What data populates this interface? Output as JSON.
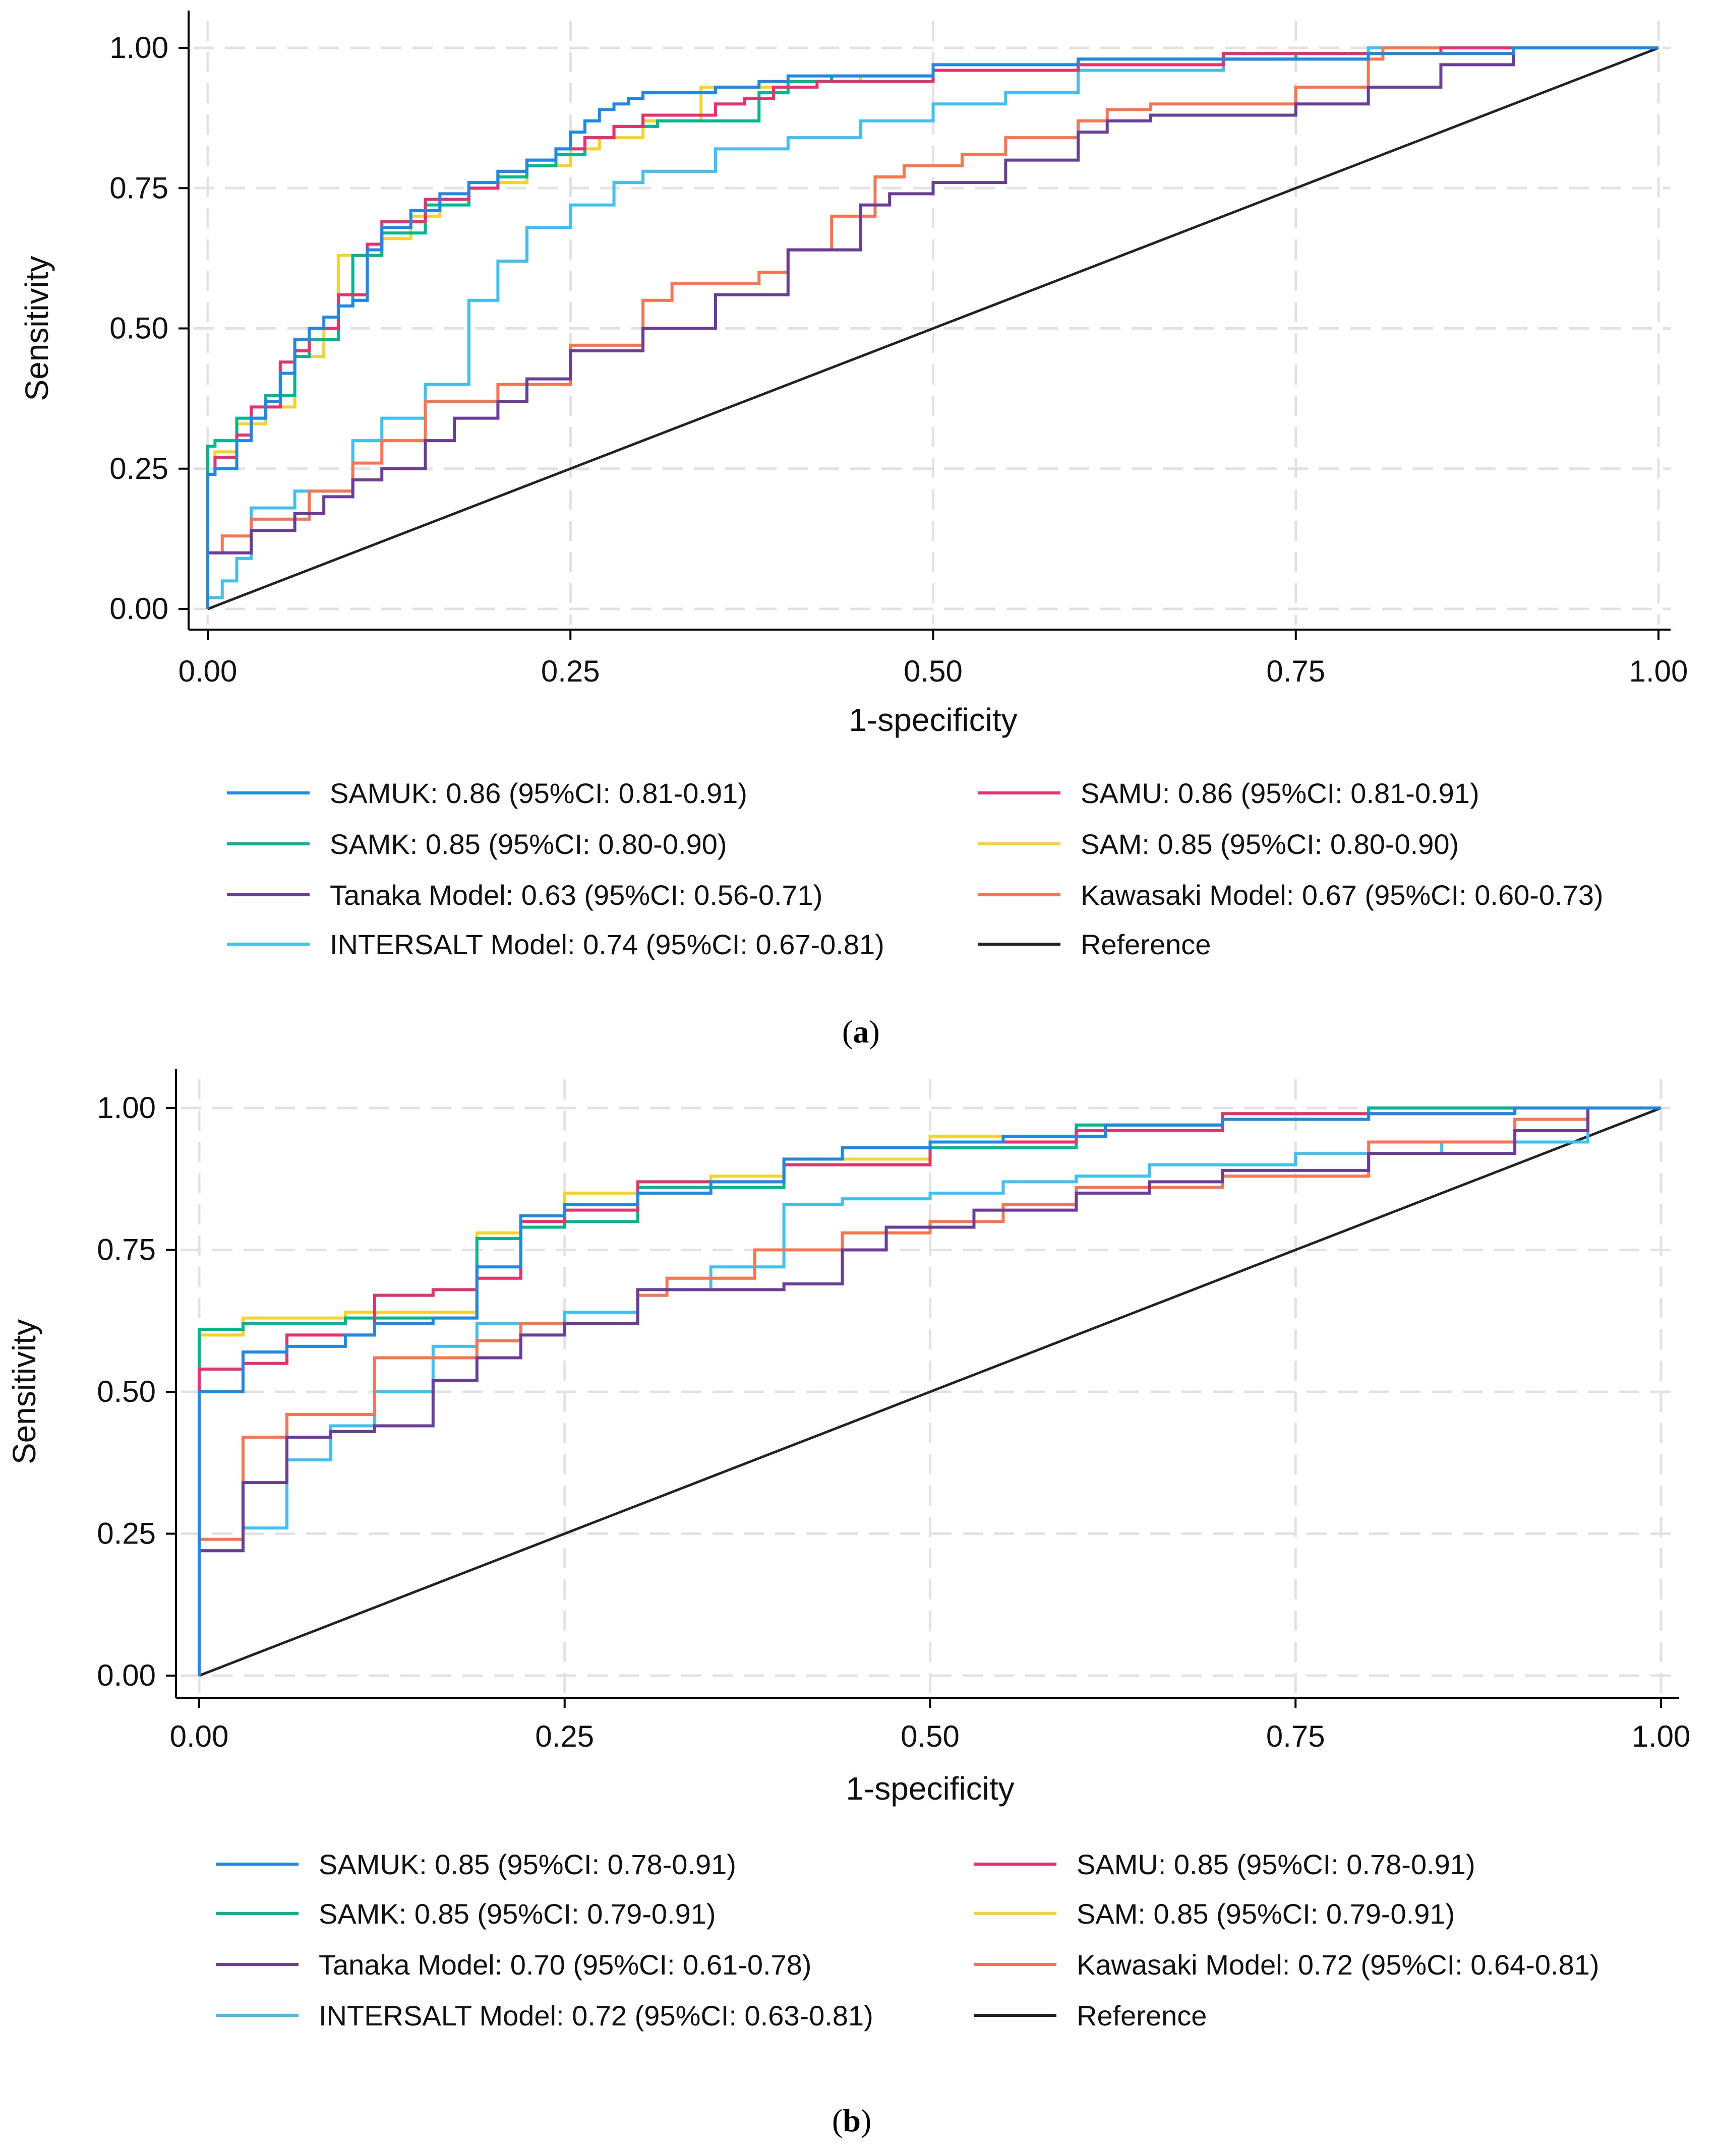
{
  "chart_data": [
    {
      "type": "line",
      "panel_label": "a",
      "xlabel": "1-specificity",
      "ylabel": "Sensitivity",
      "xlim": [
        0,
        1
      ],
      "ylim": [
        0,
        1
      ],
      "xticks": [
        "0.00",
        "0.25",
        "0.50",
        "0.75",
        "1.00"
      ],
      "yticks": [
        "0.00",
        "0.25",
        "0.50",
        "0.75",
        "1.00"
      ],
      "grid": true,
      "legend_position": "bottom",
      "series": [
        {
          "name": "SAMUK: 0.86 (95%CI: 0.81-0.91)",
          "color": "#1f88e5",
          "x": [
            0,
            0.005,
            0.02,
            0.03,
            0.04,
            0.05,
            0.06,
            0.07,
            0.08,
            0.09,
            0.1,
            0.11,
            0.12,
            0.14,
            0.16,
            0.18,
            0.2,
            0.22,
            0.24,
            0.25,
            0.26,
            0.27,
            0.28,
            0.29,
            0.3,
            0.35,
            0.38,
            0.4,
            0.5,
            0.6,
            0.65,
            0.8,
            0.9,
            1
          ],
          "y": [
            0,
            0.24,
            0.25,
            0.3,
            0.34,
            0.37,
            0.42,
            0.48,
            0.5,
            0.52,
            0.54,
            0.55,
            0.64,
            0.68,
            0.71,
            0.74,
            0.76,
            0.78,
            0.8,
            0.82,
            0.85,
            0.87,
            0.89,
            0.9,
            0.91,
            0.92,
            0.93,
            0.94,
            0.95,
            0.97,
            0.98,
            0.98,
            0.99,
            1
          ]
        },
        {
          "name": "SAMU: 0.86 (95%CI: 0.81-0.91)",
          "color": "#e6316e",
          "x": [
            0,
            0.005,
            0.02,
            0.03,
            0.05,
            0.06,
            0.07,
            0.09,
            0.11,
            0.12,
            0.15,
            0.18,
            0.2,
            0.22,
            0.24,
            0.26,
            0.28,
            0.3,
            0.35,
            0.37,
            0.39,
            0.42,
            0.5,
            0.6,
            0.7,
            0.85,
            1
          ],
          "y": [
            0,
            0.24,
            0.27,
            0.31,
            0.36,
            0.44,
            0.46,
            0.5,
            0.56,
            0.65,
            0.69,
            0.73,
            0.75,
            0.78,
            0.8,
            0.82,
            0.84,
            0.86,
            0.88,
            0.9,
            0.91,
            0.93,
            0.94,
            0.96,
            0.97,
            0.99,
            1
          ]
        },
        {
          "name": "SAMK: 0.85 (95%CI: 0.80-0.90)",
          "color": "#00b890",
          "x": [
            0,
            0.005,
            0.02,
            0.04,
            0.06,
            0.07,
            0.09,
            0.1,
            0.12,
            0.15,
            0.18,
            0.2,
            0.22,
            0.24,
            0.26,
            0.28,
            0.31,
            0.38,
            0.4,
            0.43,
            0.5,
            0.6,
            0.75,
            0.9,
            1
          ],
          "y": [
            0,
            0.29,
            0.3,
            0.34,
            0.38,
            0.45,
            0.48,
            0.54,
            0.63,
            0.67,
            0.72,
            0.75,
            0.77,
            0.79,
            0.81,
            0.84,
            0.86,
            0.87,
            0.92,
            0.94,
            0.95,
            0.96,
            0.98,
            0.99,
            1
          ]
        },
        {
          "name": "SAM: 0.85 (95%CI: 0.80-0.90)",
          "color": "#f5d32a",
          "x": [
            0,
            0.005,
            0.02,
            0.04,
            0.06,
            0.08,
            0.09,
            0.12,
            0.14,
            0.16,
            0.18,
            0.22,
            0.25,
            0.27,
            0.3,
            0.34,
            0.4,
            0.45,
            0.5,
            0.6,
            0.7,
            0.85,
            1
          ],
          "y": [
            0,
            0.24,
            0.28,
            0.33,
            0.36,
            0.45,
            0.5,
            0.63,
            0.66,
            0.7,
            0.73,
            0.76,
            0.79,
            0.82,
            0.84,
            0.87,
            0.93,
            0.94,
            0.95,
            0.97,
            0.98,
            0.99,
            1
          ]
        },
        {
          "name": "Tanaka Model: 0.63 (95%CI: 0.56-0.71)",
          "color": "#6a3d9a",
          "x": [
            0,
            0,
            0.03,
            0.06,
            0.08,
            0.1,
            0.12,
            0.15,
            0.17,
            0.2,
            0.22,
            0.25,
            0.3,
            0.35,
            0.4,
            0.45,
            0.47,
            0.5,
            0.55,
            0.6,
            0.62,
            0.65,
            0.7,
            0.75,
            0.8,
            0.85,
            0.9,
            1
          ],
          "y": [
            0,
            0.09,
            0.1,
            0.14,
            0.17,
            0.2,
            0.23,
            0.25,
            0.3,
            0.34,
            0.37,
            0.41,
            0.46,
            0.5,
            0.56,
            0.64,
            0.72,
            0.74,
            0.76,
            0.8,
            0.85,
            0.87,
            0.88,
            0.88,
            0.9,
            0.93,
            0.97,
            1
          ]
        },
        {
          "name": "Kawasaki Model: 0.67 (95%CI: 0.60-0.73)",
          "color": "#f8764f",
          "x": [
            0,
            0,
            0.01,
            0.03,
            0.07,
            0.1,
            0.12,
            0.15,
            0.2,
            0.25,
            0.3,
            0.32,
            0.38,
            0.4,
            0.43,
            0.46,
            0.48,
            0.52,
            0.55,
            0.6,
            0.62,
            0.65,
            0.75,
            0.8,
            0.81,
            1
          ],
          "y": [
            0,
            0.07,
            0.1,
            0.13,
            0.16,
            0.21,
            0.26,
            0.3,
            0.37,
            0.4,
            0.47,
            0.55,
            0.58,
            0.6,
            0.64,
            0.7,
            0.77,
            0.79,
            0.81,
            0.84,
            0.87,
            0.89,
            0.9,
            0.93,
            0.98,
            1
          ]
        },
        {
          "name": "INTERSALT Model: 0.74 (95%CI: 0.67-0.81)",
          "color": "#3ec1f0",
          "x": [
            0,
            0.01,
            0.02,
            0.03,
            0.06,
            0.1,
            0.12,
            0.15,
            0.18,
            0.2,
            0.22,
            0.25,
            0.28,
            0.3,
            0.35,
            0.4,
            0.45,
            0.5,
            0.55,
            0.6,
            0.7,
            0.8,
            1
          ],
          "y": [
            0,
            0.02,
            0.05,
            0.09,
            0.18,
            0.21,
            0.3,
            0.34,
            0.4,
            0.55,
            0.62,
            0.68,
            0.72,
            0.76,
            0.78,
            0.82,
            0.84,
            0.87,
            0.9,
            0.92,
            0.96,
            0.98,
            1
          ]
        },
        {
          "name": "Reference",
          "color": "#222222",
          "x": [
            0,
            1
          ],
          "y": [
            0,
            1
          ],
          "diagonal": true
        }
      ]
    },
    {
      "type": "line",
      "panel_label": "b",
      "xlabel": "1-specificity",
      "ylabel": "Sensitivity",
      "xlim": [
        0,
        1
      ],
      "ylim": [
        0,
        1
      ],
      "xticks": [
        "0.00",
        "0.25",
        "0.50",
        "0.75",
        "1.00"
      ],
      "yticks": [
        "0.00",
        "0.25",
        "0.50",
        "0.75",
        "1.00"
      ],
      "grid": true,
      "legend_position": "bottom",
      "series": [
        {
          "name": "SAMUK: 0.85 (95%CI: 0.78-0.91)",
          "color": "#1f88e5",
          "x": [
            0,
            0,
            0.03,
            0.03,
            0.06,
            0.1,
            0.12,
            0.16,
            0.19,
            0.22,
            0.25,
            0.3,
            0.35,
            0.4,
            0.44,
            0.5,
            0.55,
            0.62,
            0.7,
            0.8,
            0.9,
            1
          ],
          "y": [
            0,
            0.48,
            0.5,
            0.55,
            0.57,
            0.58,
            0.6,
            0.62,
            0.63,
            0.72,
            0.81,
            0.83,
            0.85,
            0.87,
            0.91,
            0.93,
            0.94,
            0.95,
            0.97,
            0.98,
            0.99,
            1
          ]
        },
        {
          "name": "SAMU: 0.85 (95%CI: 0.78-0.91)",
          "color": "#e6316e",
          "x": [
            0,
            0,
            0.03,
            0.06,
            0.12,
            0.16,
            0.19,
            0.22,
            0.25,
            0.3,
            0.4,
            0.5,
            0.6,
            0.7,
            0.9,
            1
          ],
          "y": [
            0,
            0.46,
            0.54,
            0.55,
            0.6,
            0.67,
            0.68,
            0.7,
            0.8,
            0.82,
            0.87,
            0.9,
            0.94,
            0.96,
            0.99,
            1
          ]
        },
        {
          "name": "SAMK: 0.85 (95%CI: 0.79-0.91)",
          "color": "#00b890",
          "x": [
            0,
            0,
            0.03,
            0.1,
            0.19,
            0.22,
            0.25,
            0.3,
            0.4,
            0.5,
            0.6,
            0.7,
            0.8,
            1
          ],
          "y": [
            0,
            0.5,
            0.61,
            0.62,
            0.63,
            0.77,
            0.79,
            0.8,
            0.86,
            0.9,
            0.93,
            0.97,
            0.98,
            1
          ]
        },
        {
          "name": "SAM: 0.85 (95%CI: 0.79-0.91)",
          "color": "#f5d32a",
          "x": [
            0,
            0,
            0.03,
            0.1,
            0.19,
            0.22,
            0.25,
            0.35,
            0.4,
            0.5,
            0.6,
            0.7,
            0.8,
            1
          ],
          "y": [
            0,
            0.5,
            0.6,
            0.63,
            0.64,
            0.78,
            0.8,
            0.85,
            0.88,
            0.91,
            0.95,
            0.97,
            0.99,
            1
          ]
        },
        {
          "name": "Tanaka Model: 0.70 (95%CI: 0.61-0.78)",
          "color": "#6a3d9a",
          "x": [
            0,
            0,
            0.03,
            0.06,
            0.09,
            0.12,
            0.16,
            0.19,
            0.22,
            0.25,
            0.3,
            0.4,
            0.44,
            0.47,
            0.53,
            0.6,
            0.65,
            0.7,
            0.8,
            0.9,
            0.95,
            1
          ],
          "y": [
            0,
            0.2,
            0.22,
            0.34,
            0.42,
            0.43,
            0.44,
            0.52,
            0.56,
            0.6,
            0.62,
            0.68,
            0.69,
            0.75,
            0.79,
            0.82,
            0.85,
            0.87,
            0.89,
            0.92,
            0.96,
            1
          ]
        },
        {
          "name": "Kawasaki Model: 0.72 (95%CI: 0.64-0.81)",
          "color": "#f8764f",
          "x": [
            0,
            0,
            0.03,
            0.06,
            0.12,
            0.19,
            0.22,
            0.3,
            0.32,
            0.38,
            0.44,
            0.5,
            0.55,
            0.6,
            0.7,
            0.8,
            0.9,
            0.95,
            1
          ],
          "y": [
            0,
            0.2,
            0.24,
            0.42,
            0.46,
            0.56,
            0.59,
            0.62,
            0.67,
            0.7,
            0.75,
            0.78,
            0.8,
            0.83,
            0.86,
            0.88,
            0.94,
            0.98,
            1
          ]
        },
        {
          "name": "INTERSALT Model: 0.72 (95%CI: 0.63-0.81)",
          "color": "#3ec1f0",
          "x": [
            0,
            0,
            0.03,
            0.06,
            0.09,
            0.12,
            0.16,
            0.19,
            0.25,
            0.3,
            0.35,
            0.4,
            0.44,
            0.5,
            0.55,
            0.6,
            0.65,
            0.75,
            0.85,
            0.95,
            1
          ],
          "y": [
            0,
            0.12,
            0.22,
            0.26,
            0.38,
            0.44,
            0.5,
            0.58,
            0.62,
            0.64,
            0.68,
            0.72,
            0.83,
            0.84,
            0.85,
            0.87,
            0.88,
            0.9,
            0.92,
            0.94,
            1
          ]
        },
        {
          "name": "Reference",
          "color": "#222222",
          "x": [
            0,
            1
          ],
          "y": [
            0,
            1
          ],
          "diagonal": true
        }
      ]
    }
  ]
}
